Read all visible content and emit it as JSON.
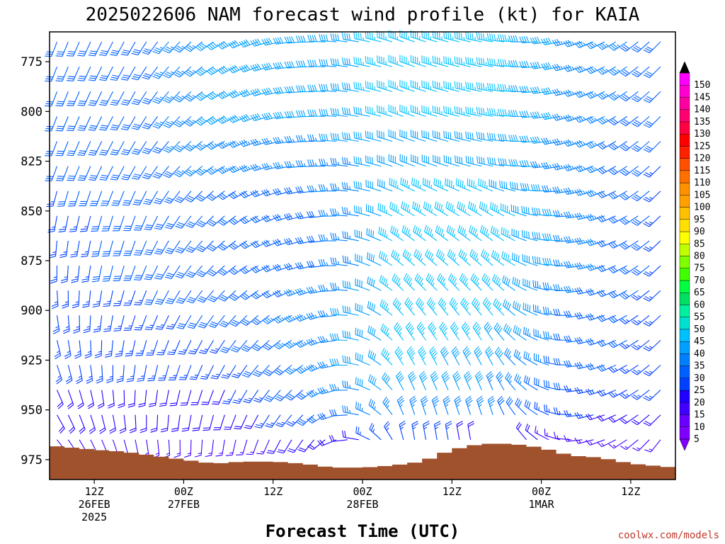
{
  "chart_data": {
    "type": "heatmap",
    "title": "2025022606 NAM forecast wind profile (kt) for KAIA",
    "xlabel": "Forecast Time (UTC)",
    "ylabel": "",
    "y_axis": {
      "ticks": [
        "775",
        "800",
        "825",
        "850",
        "875",
        "900",
        "925",
        "950",
        "975"
      ],
      "range": [
        760,
        985
      ],
      "inverted": true
    },
    "x_axis": {
      "range_hours": [
        0,
        84
      ],
      "ticks": [
        {
          "hour": 6,
          "line1": "12Z",
          "line2": "26FEB",
          "line3": "2025"
        },
        {
          "hour": 18,
          "line1": "00Z",
          "line2": "27FEB",
          "line3": ""
        },
        {
          "hour": 30,
          "line1": "12Z",
          "line2": "",
          "line3": ""
        },
        {
          "hour": 42,
          "line1": "00Z",
          "line2": "28FEB",
          "line3": ""
        },
        {
          "hour": 54,
          "line1": "12Z",
          "line2": "",
          "line3": ""
        },
        {
          "hour": 66,
          "line1": "00Z",
          "line2": "1MAR",
          "line3": ""
        },
        {
          "hour": 78,
          "line1": "12Z",
          "line2": "",
          "line3": ""
        }
      ]
    },
    "surface_pressure": {
      "hours": [
        0,
        6,
        10,
        14,
        18,
        22,
        26,
        30,
        34,
        38,
        42,
        46,
        50,
        54,
        58,
        62,
        66,
        70,
        74,
        78,
        84
      ],
      "pressure": [
        968,
        970,
        971,
        973,
        975,
        977,
        976,
        976,
        977,
        979,
        979,
        978,
        976,
        970,
        967,
        967,
        969,
        973,
        974,
        977,
        979
      ]
    },
    "wind_field_summary": {
      "levels_hpa": [
        770,
        775,
        800,
        825,
        850,
        875,
        900,
        925,
        950,
        965
      ],
      "hours": [
        0,
        12,
        24,
        36,
        48,
        60,
        72,
        84
      ],
      "speed_kt": [
        [
          30,
          30,
          40,
          40,
          45,
          45,
          35,
          30
        ],
        [
          30,
          30,
          40,
          40,
          45,
          45,
          35,
          30
        ],
        [
          30,
          30,
          40,
          40,
          45,
          45,
          35,
          30
        ],
        [
          30,
          30,
          35,
          35,
          40,
          40,
          35,
          25
        ],
        [
          25,
          30,
          30,
          30,
          45,
          45,
          35,
          25
        ],
        [
          25,
          30,
          30,
          30,
          45,
          45,
          35,
          25
        ],
        [
          25,
          25,
          30,
          35,
          45,
          45,
          30,
          25
        ],
        [
          25,
          25,
          25,
          35,
          45,
          40,
          30,
          25
        ],
        [
          20,
          20,
          20,
          30,
          40,
          35,
          25,
          20
        ],
        [
          15,
          15,
          15,
          20,
          25,
          20,
          15,
          15
        ]
      ],
      "direction_deg": [
        [
          200,
          210,
          240,
          270,
          290,
          280,
          250,
          220
        ],
        [
          200,
          210,
          240,
          270,
          290,
          280,
          250,
          220
        ],
        [
          200,
          210,
          240,
          270,
          290,
          280,
          250,
          220
        ],
        [
          200,
          210,
          240,
          270,
          290,
          280,
          250,
          220
        ],
        [
          190,
          200,
          230,
          260,
          300,
          300,
          260,
          220
        ],
        [
          180,
          200,
          230,
          260,
          310,
          310,
          260,
          220
        ],
        [
          170,
          200,
          220,
          250,
          320,
          320,
          260,
          220
        ],
        [
          160,
          190,
          210,
          240,
          330,
          330,
          260,
          220
        ],
        [
          150,
          180,
          200,
          230,
          340,
          340,
          260,
          220
        ],
        [
          140,
          170,
          190,
          220,
          350,
          350,
          260,
          210
        ]
      ]
    },
    "colorbar": {
      "labels": [
        5,
        10,
        15,
        20,
        25,
        30,
        35,
        40,
        45,
        50,
        55,
        60,
        65,
        70,
        75,
        80,
        85,
        90,
        95,
        100,
        105,
        110,
        115,
        120,
        125,
        130,
        135,
        140,
        145,
        150
      ],
      "colors": [
        "#8000ff",
        "#6a00ff",
        "#4000ff",
        "#2000ff",
        "#0040ff",
        "#0060ff",
        "#0080ff",
        "#00a0ff",
        "#00c0ff",
        "#00e0d0",
        "#00f0a0",
        "#00e060",
        "#00ff40",
        "#40ff00",
        "#80ff00",
        "#c0ff00",
        "#ffff00",
        "#ffe000",
        "#ffc000",
        "#ffa000",
        "#ff9000",
        "#ff7000",
        "#ff5000",
        "#ff2000",
        "#ff0000",
        "#ff0040",
        "#ff0070",
        "#ff00a0",
        "#ff00d0",
        "#ff00ff"
      ]
    },
    "grid": false,
    "terrain_color": "#a0522d"
  },
  "credit": "coolwx.com/models"
}
